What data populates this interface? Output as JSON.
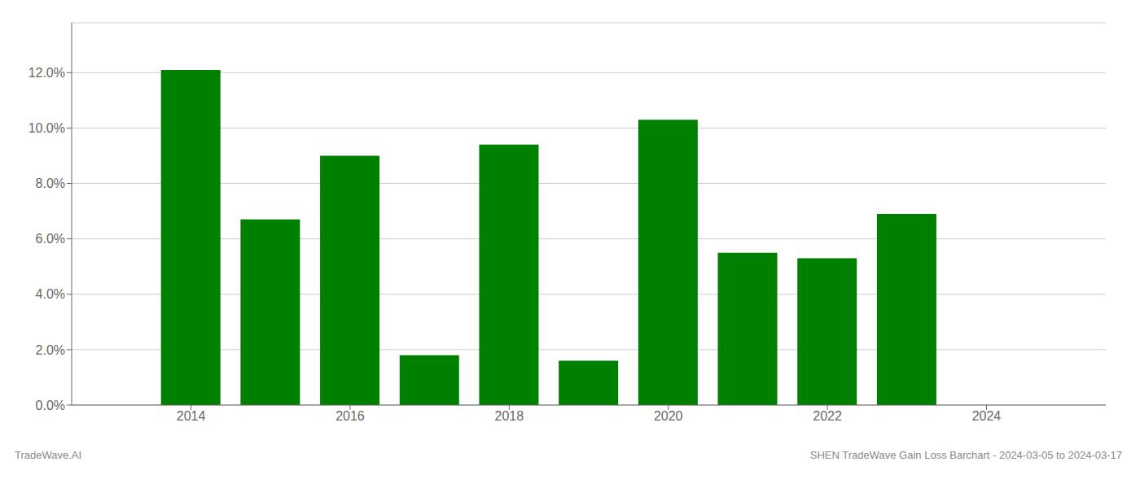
{
  "chart_data": {
    "type": "bar",
    "x": [
      2014,
      2015,
      2016,
      2017,
      2018,
      2019,
      2020,
      2021,
      2022,
      2023
    ],
    "values": [
      0.121,
      0.067,
      0.09,
      0.018,
      0.094,
      0.016,
      0.103,
      0.055,
      0.053,
      0.069
    ],
    "color": "#008000",
    "xlim": [
      2012.5,
      2025.5
    ],
    "xticks": [
      2014,
      2016,
      2018,
      2020,
      2022,
      2024
    ],
    "ylim": [
      0.0,
      0.138
    ],
    "yticks": [
      {
        "value": 0.0,
        "label": "0.0%"
      },
      {
        "value": 0.02,
        "label": "2.0%"
      },
      {
        "value": 0.04,
        "label": "4.0%"
      },
      {
        "value": 0.06,
        "label": "6.0%"
      },
      {
        "value": 0.08,
        "label": "8.0%"
      },
      {
        "value": 0.1,
        "label": "10.0%"
      },
      {
        "value": 0.12,
        "label": "12.0%"
      }
    ],
    "grid": true,
    "annotations": [
      "TradeWave.AI",
      "SHEN TradeWave Gain Loss Barchart - 2024-03-05 to 2024-03-17"
    ]
  }
}
